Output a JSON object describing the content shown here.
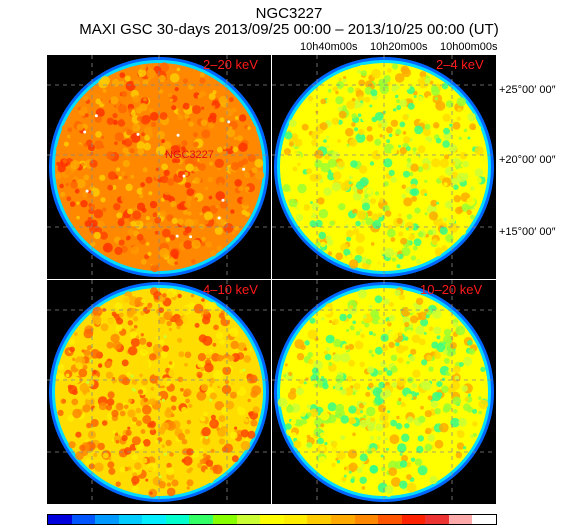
{
  "header": {
    "object": "NGC3227",
    "observation": "MAXI GSC 30-days 2013/09/25 00:00 – 2013/10/25 00:00 (UT)"
  },
  "ra_axis": [
    "10h40m00s",
    "10h20m00s",
    "10h00m00s"
  ],
  "dec_axis": [
    "+25°00′ 00″",
    "+20°00′ 00″",
    "+15°00′ 00″"
  ],
  "panels": [
    {
      "band": "2–20 keV",
      "source_label": "NGC3227",
      "palette": "hot"
    },
    {
      "band": "2–4 keV",
      "source_label": "",
      "palette": "cool"
    },
    {
      "band": "4–10 keV",
      "source_label": "",
      "palette": "warm"
    },
    {
      "band": "10–20 keV",
      "source_label": "",
      "palette": "cool"
    }
  ],
  "colorbar": [
    "#0000dd",
    "#0055ff",
    "#0099ff",
    "#00ccff",
    "#00eeff",
    "#00ffcc",
    "#33ff66",
    "#88ff00",
    "#ccff33",
    "#ffff00",
    "#ffee00",
    "#ffcc00",
    "#ffaa00",
    "#ff8800",
    "#ff5500",
    "#ff2200",
    "#ee3333",
    "#ffaaaa",
    "#ffffff"
  ]
}
